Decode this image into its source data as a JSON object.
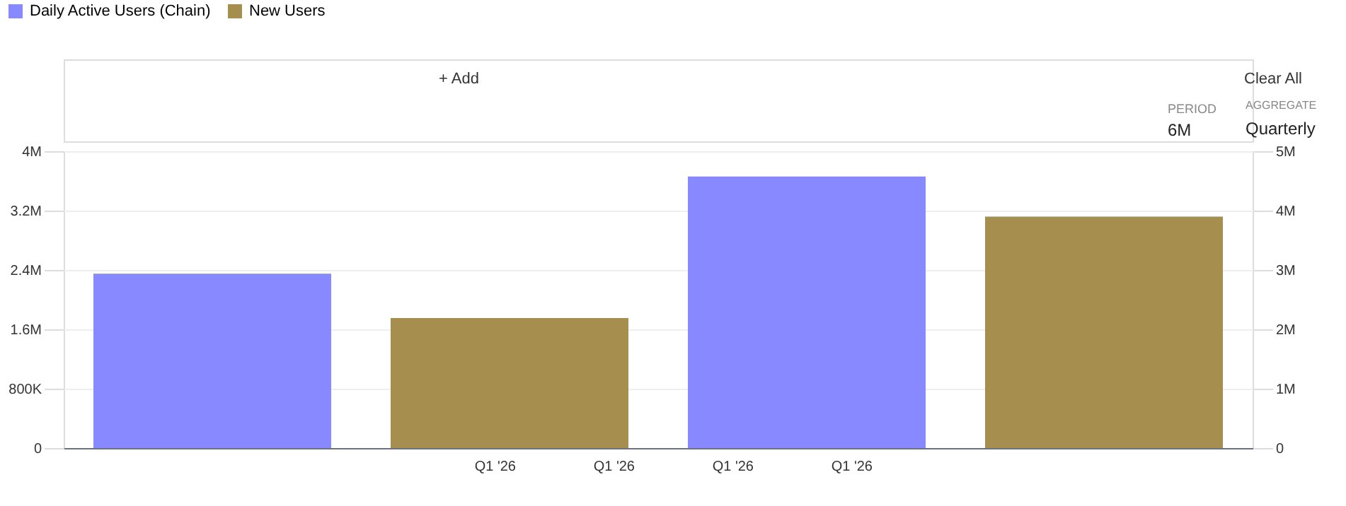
{
  "chart_data": {
    "type": "bar",
    "categories": [
      null,
      null,
      null,
      null
    ],
    "series": [
      {
        "name": "Daily Active Users (Chain)",
        "color": "#8888ff",
        "values": [
          2350000,
          null,
          3660000,
          null
        ]
      },
      {
        "name": "New Users",
        "color": "#a68e4e",
        "axis": "y2",
        "values": [
          null,
          2190000,
          null,
          3900000
        ]
      }
    ],
    "ylim": [
      0,
      4000000
    ],
    "yticks": [
      0,
      {
        "value": 800000,
        "label": "800K"
      },
      {
        "value": 1600000,
        "label": "1.6M"
      },
      {
        "value": 2400000,
        "label": "2.4M"
      },
      {
        "value": 3200000,
        "label": "3.2M"
      },
      {
        "value": 4000000,
        "label": "4M"
      }
    ],
    "y2lim": [
      0,
      5000000
    ],
    "y2ticks": [
      0,
      {
        "value": 1000000,
        "label": "1M"
      },
      {
        "value": 2000000,
        "label": "2M"
      },
      {
        "value": 3000000,
        "label": "3M"
      },
      {
        "value": 4000000,
        "label": "4M"
      },
      {
        "value": 5000000,
        "label": "5M"
      }
    ],
    "grid": "y",
    "legend": "top left",
    "annotations": [
      "+ Add",
      "Clear All",
      "PERIOD",
      "6M",
      "AGGREGATE",
      "Quarterly",
      "Q1 '26",
      "Q1 '26",
      "Q1 '26",
      "Q1 '26"
    ]
  }
}
